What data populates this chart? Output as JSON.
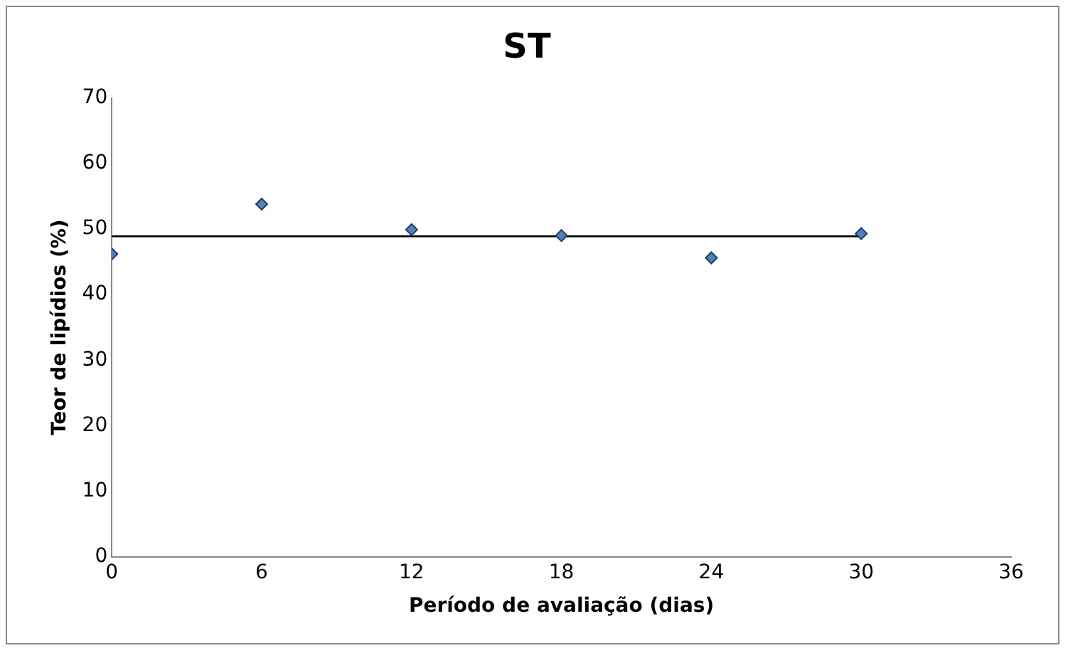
{
  "chart_data": {
    "type": "scatter",
    "title": "ST",
    "xlabel": "Período de avaliação (dias)",
    "ylabel": "Teor de lipídios (%)",
    "xlim": [
      0,
      36
    ],
    "xticks": [
      0,
      6,
      12,
      18,
      24,
      30,
      36
    ],
    "ylim": [
      0,
      70
    ],
    "yticks": [
      0,
      10,
      20,
      30,
      40,
      50,
      60,
      70
    ],
    "grid": false,
    "legend": false,
    "marker": "diamond",
    "series": [
      {
        "color": "#4f81bd",
        "x": [
          0,
          6,
          12,
          18,
          24,
          30
        ],
        "values": [
          46.2,
          53.8,
          49.9,
          49.0,
          45.6,
          49.3
        ]
      },
      {
        "type": "line",
        "color": "#000000",
        "x": [
          0,
          30
        ],
        "values": [
          48.9,
          48.9
        ],
        "marker": "none",
        "line_style": "solid"
      }
    ]
  }
}
